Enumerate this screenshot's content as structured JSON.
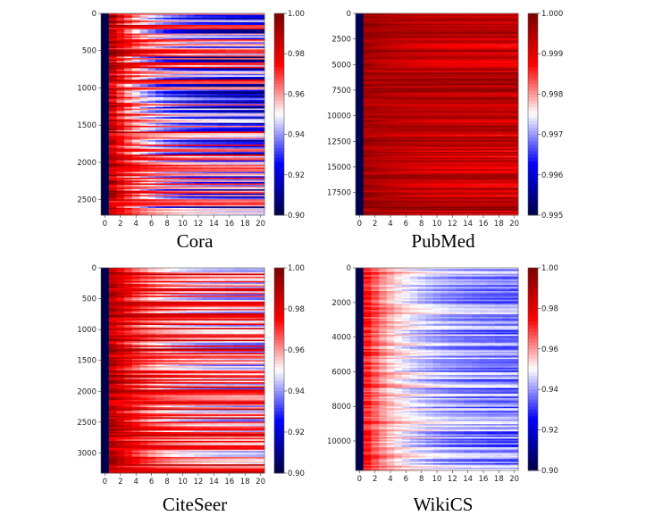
{
  "chart_data": [
    {
      "type": "heatmap",
      "title": "Cora",
      "xlabel": "",
      "ylabel": "",
      "x_range": [
        -0.5,
        20.5
      ],
      "x_ticks": [
        0,
        2,
        4,
        6,
        8,
        10,
        12,
        14,
        16,
        18,
        20
      ],
      "y_range": [
        0,
        2708
      ],
      "y_ticks": [
        0,
        500,
        1000,
        1500,
        2000,
        2500
      ],
      "colorbar": {
        "range": [
          0.9,
          1.0
        ],
        "ticks": [
          "0.90",
          "0.92",
          "0.94",
          "0.96",
          "0.98",
          "1.00"
        ],
        "colormap": "seismic"
      },
      "pattern": {
        "col0": 0.9,
        "start": [
          0.97,
          1.0
        ],
        "end": [
          0.9,
          0.975
        ]
      }
    },
    {
      "type": "heatmap",
      "title": "PubMed",
      "xlabel": "",
      "ylabel": "",
      "x_range": [
        -0.5,
        20.5
      ],
      "x_ticks": [
        0,
        2,
        4,
        6,
        8,
        10,
        12,
        14,
        16,
        18,
        20
      ],
      "y_range": [
        0,
        19717
      ],
      "y_ticks": [
        0,
        2500,
        5000,
        7500,
        10000,
        12500,
        15000,
        17500
      ],
      "colorbar": {
        "range": [
          0.995,
          1.0
        ],
        "ticks": [
          "0.995",
          "0.996",
          "0.997",
          "0.998",
          "0.999",
          "1.000"
        ],
        "colormap": "seismic"
      },
      "pattern": {
        "col0": 0.995,
        "start": [
          0.9993,
          1.0
        ],
        "end": [
          0.9986,
          1.0
        ]
      }
    },
    {
      "type": "heatmap",
      "title": "CiteSeer",
      "xlabel": "",
      "ylabel": "",
      "x_range": [
        -0.5,
        20.5
      ],
      "x_ticks": [
        0,
        2,
        4,
        6,
        8,
        10,
        12,
        14,
        16,
        18,
        20
      ],
      "y_range": [
        0,
        3327
      ],
      "y_ticks": [
        0,
        500,
        1000,
        1500,
        2000,
        2500,
        3000
      ],
      "colorbar": {
        "range": [
          0.9,
          1.0
        ],
        "ticks": [
          "0.90",
          "0.92",
          "0.94",
          "0.96",
          "0.98",
          "1.00"
        ],
        "colormap": "seismic"
      },
      "pattern": {
        "col0": 0.9,
        "start": [
          0.975,
          1.0
        ],
        "end": [
          0.93,
          0.99
        ]
      }
    },
    {
      "type": "heatmap",
      "title": "WikiCS",
      "xlabel": "",
      "ylabel": "",
      "x_range": [
        -0.5,
        20.5
      ],
      "x_ticks": [
        0,
        2,
        4,
        6,
        8,
        10,
        12,
        14,
        16,
        18,
        20
      ],
      "y_range": [
        0,
        11701
      ],
      "y_ticks": [
        0,
        2000,
        4000,
        6000,
        8000,
        10000
      ],
      "colorbar": {
        "range": [
          0.9,
          1.0
        ],
        "ticks": [
          "0.90",
          "0.92",
          "0.94",
          "0.96",
          "0.98",
          "1.00"
        ],
        "colormap": "seismic"
      },
      "pattern": {
        "col0": 0.9,
        "start": [
          0.965,
          0.98
        ],
        "end": [
          0.925,
          0.95
        ]
      }
    }
  ]
}
